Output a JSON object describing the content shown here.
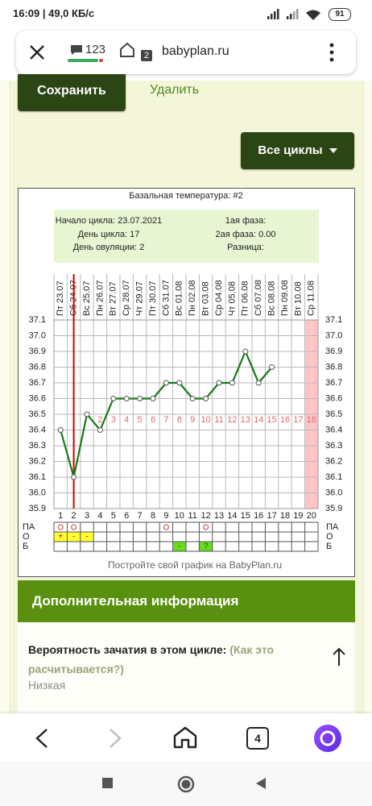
{
  "status_bar": {
    "time": "16:09 | 49,0 КБ/с",
    "battery": "91"
  },
  "browser": {
    "comments": "123",
    "tabs": "2",
    "url": "babyplan.ru"
  },
  "actions": {
    "save": "Сохранить",
    "delete": "Удалить",
    "all_cycles": "Все циклы"
  },
  "chart_data": {
    "type": "line",
    "title": "Базальная температура: #2",
    "summary": [
      {
        "label": "Начало цикла:",
        "value": "23.07.2021"
      },
      {
        "label": "День цикла:",
        "value": 17
      },
      {
        "label": "День овуляции:",
        "value": 2
      },
      {
        "label": "1ая фаза:"
      },
      {
        "label": "2ая фаза:",
        "value": "0.00"
      },
      {
        "label": "Разница:"
      }
    ],
    "categories": [
      "Пт 23.07",
      "Сб 24.07",
      "Вс 25.07",
      "Пн 26.07",
      "Вт 27.07",
      "Ср 28.07",
      "Чт 29.07",
      "Пт 30.07",
      "Сб 31.07",
      "Вс 01.08",
      "Пн 02.08",
      "Вт 03.08",
      "Ср 04.08",
      "Чт 05.08",
      "Пт 06.08",
      "Сб 07.08",
      "Вс 08.08",
      "Пн 09.08",
      "Вт 10.08",
      "Ср 11.08"
    ],
    "days": [
      1,
      2,
      3,
      4,
      5,
      6,
      7,
      8,
      9,
      10,
      11,
      12,
      13,
      14,
      15,
      16,
      17,
      18,
      19,
      20
    ],
    "phase_days": [
      null,
      null,
      null,
      2,
      3,
      4,
      5,
      6,
      7,
      8,
      9,
      10,
      11,
      12,
      13,
      14,
      15,
      16,
      17,
      18
    ],
    "values": [
      36.4,
      36.1,
      36.5,
      36.4,
      36.6,
      36.6,
      36.6,
      36.6,
      36.7,
      36.7,
      36.6,
      36.6,
      36.7,
      36.7,
      36.9,
      36.7,
      36.8,
      null,
      null,
      null
    ],
    "color": "#167a16",
    "ylim": [
      35.9,
      37.1
    ],
    "yticks": [
      37.1,
      {
        "value": 37,
        "label": "37.0"
      },
      36.9,
      36.8,
      36.7,
      36.6,
      36.5,
      36.4,
      36.3,
      36.2,
      36.1,
      {
        "value": 36,
        "label": "36.0"
      },
      35.9
    ],
    "grid": true,
    "ovulation_line_color": "#d40000",
    "highlight": {
      "index": 19,
      "color": "#ffc6c6"
    },
    "rows": [
      {
        "name": "ПА",
        "cells": [
          true,
          true,
          null,
          null,
          null,
          null,
          null,
          null,
          true,
          null,
          null,
          true,
          null,
          null,
          null,
          null,
          null,
          null,
          null,
          null
        ]
      },
      {
        "name": "О",
        "color": "#ffff33",
        "cells": [
          "+",
          "-",
          "-",
          null,
          null,
          null,
          null,
          null,
          null,
          null,
          null,
          null,
          null,
          null,
          null,
          null,
          null,
          null,
          null,
          null
        ]
      },
      {
        "name": "Б",
        "color": "#66dd22",
        "cells": [
          null,
          null,
          null,
          null,
          null,
          null,
          null,
          null,
          null,
          "-",
          null,
          "?",
          null,
          null,
          null,
          null,
          null,
          null,
          null,
          null
        ]
      }
    ],
    "footer": "Постройте свой график на BabyPlan.ru"
  },
  "info": {
    "title": "Дополнительная информация",
    "question": "Вероятность зачатия в этом цикле:",
    "link": "(Как это расчитывается?)",
    "answer": "Низкая"
  },
  "bottom_nav": {
    "tabs": "4"
  }
}
